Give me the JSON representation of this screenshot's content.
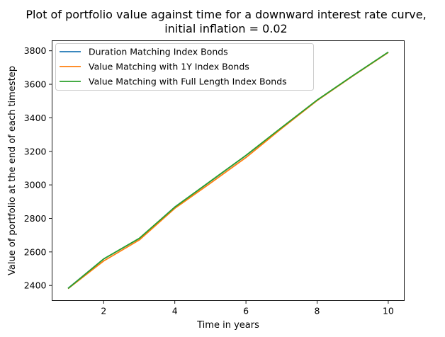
{
  "chart_data": {
    "type": "line",
    "title": "Plot of portfolio value against time for a downward interest rate curve,",
    "subtitle": "initial inflation = 0.02",
    "xlabel": "Time in years",
    "ylabel": "Value of portfolio at the end of each timestep",
    "xlim": [
      0.55,
      10.45
    ],
    "ylim": [
      2310,
      3860
    ],
    "xticks": [
      2,
      4,
      6,
      8,
      10
    ],
    "yticks": [
      2400,
      2600,
      2800,
      3000,
      3200,
      3400,
      3600,
      3800
    ],
    "grid": false,
    "legend_position": "upper-left",
    "x": [
      1,
      2,
      3,
      4,
      5,
      6,
      7,
      8,
      9,
      10
    ],
    "series": [
      {
        "name": "Duration Matching Index Bonds",
        "color": "#1f77b4",
        "values": [
          2383,
          2558,
          2680,
          2868,
          3021,
          3175,
          3341,
          3505,
          3650,
          3791
        ]
      },
      {
        "name": "Value Matching with 1Y Index Bonds",
        "color": "#ff7f0e",
        "values": [
          2381,
          2546,
          2671,
          2860,
          3010,
          3163,
          3336,
          3503,
          3649,
          3790
        ]
      },
      {
        "name": "Value Matching with Full Length Index Bonds",
        "color": "#2ca02c",
        "values": [
          2382,
          2558,
          2681,
          2867,
          3022,
          3176,
          3342,
          3506,
          3651,
          3792
        ]
      }
    ]
  }
}
